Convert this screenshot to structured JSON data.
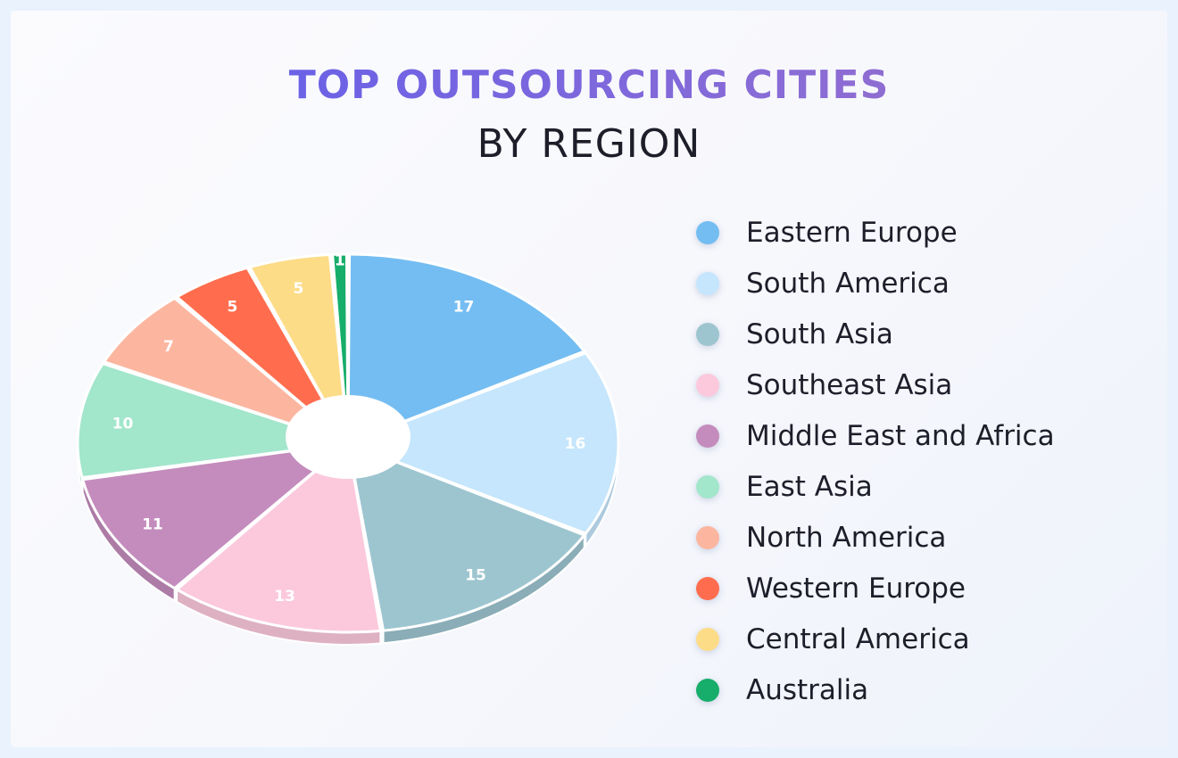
{
  "title": "TOP OUTSOURCING CITIES",
  "subtitle": "BY REGION",
  "chart_data": {
    "type": "pie",
    "title": "TOP OUTSOURCING CITIES",
    "subtitle": "BY REGION",
    "legend_position": "right",
    "donut": true,
    "slices": [
      {
        "label": "Eastern Europe",
        "value": 17,
        "color": "#74bdf2"
      },
      {
        "label": "South America",
        "value": 16,
        "color": "#c5e6fc"
      },
      {
        "label": "South Asia",
        "value": 15,
        "color": "#9dc5d0"
      },
      {
        "label": "Southeast Asia",
        "value": 13,
        "color": "#fcc9dc"
      },
      {
        "label": "Middle East and Africa",
        "value": 11,
        "color": "#c48cbd"
      },
      {
        "label": "East Asia",
        "value": 10,
        "color": "#a2e6cc"
      },
      {
        "label": "North America",
        "value": 7,
        "color": "#fcb6a0"
      },
      {
        "label": "Western Europe",
        "value": 5,
        "color": "#ff6d4e"
      },
      {
        "label": "Central America",
        "value": 5,
        "color": "#fddc88"
      },
      {
        "label": "Australia",
        "value": 1,
        "color": "#17ad6a"
      }
    ]
  }
}
